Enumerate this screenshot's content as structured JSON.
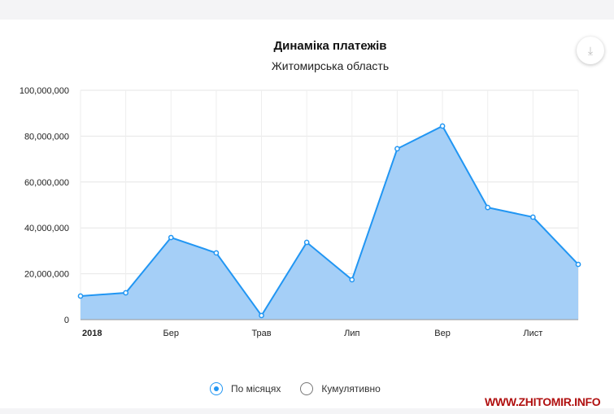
{
  "chart_data": {
    "type": "area",
    "title": "Динаміка платежів",
    "subtitle": "Житомирська область",
    "x": [
      "2018-01",
      "2018-02",
      "2018-03",
      "2018-04",
      "2018-05",
      "2018-06",
      "2018-07",
      "2018-08",
      "2018-09",
      "2018-10",
      "2018-11",
      "2018-12"
    ],
    "x_tick_labels": [
      "2018",
      "",
      "Бер",
      "",
      "Трав",
      "",
      "Лип",
      "",
      "Вер",
      "",
      "Лист",
      ""
    ],
    "y_tick_labels": [
      "0",
      "20,000,000",
      "40,000,000",
      "60,000,000",
      "80,000,000",
      "100,000,000"
    ],
    "y_ticks": [
      0,
      20000000,
      40000000,
      60000000,
      80000000,
      100000000
    ],
    "ylim": [
      0,
      100000000
    ],
    "series": [
      {
        "name": "По місяцях",
        "color": "#2196f3",
        "values": [
          10300000,
          11700000,
          35800000,
          29100000,
          1800000,
          33700000,
          17400000,
          74500000,
          84400000,
          48900000,
          44700000,
          24100000
        ]
      }
    ],
    "grid": true
  },
  "download_icon": "download-icon",
  "legend": {
    "options": [
      {
        "label": "По місяцях",
        "selected": true
      },
      {
        "label": "Кумулятивно",
        "selected": false
      }
    ]
  },
  "watermark": "WWW.ZHITOMIR.INFO"
}
